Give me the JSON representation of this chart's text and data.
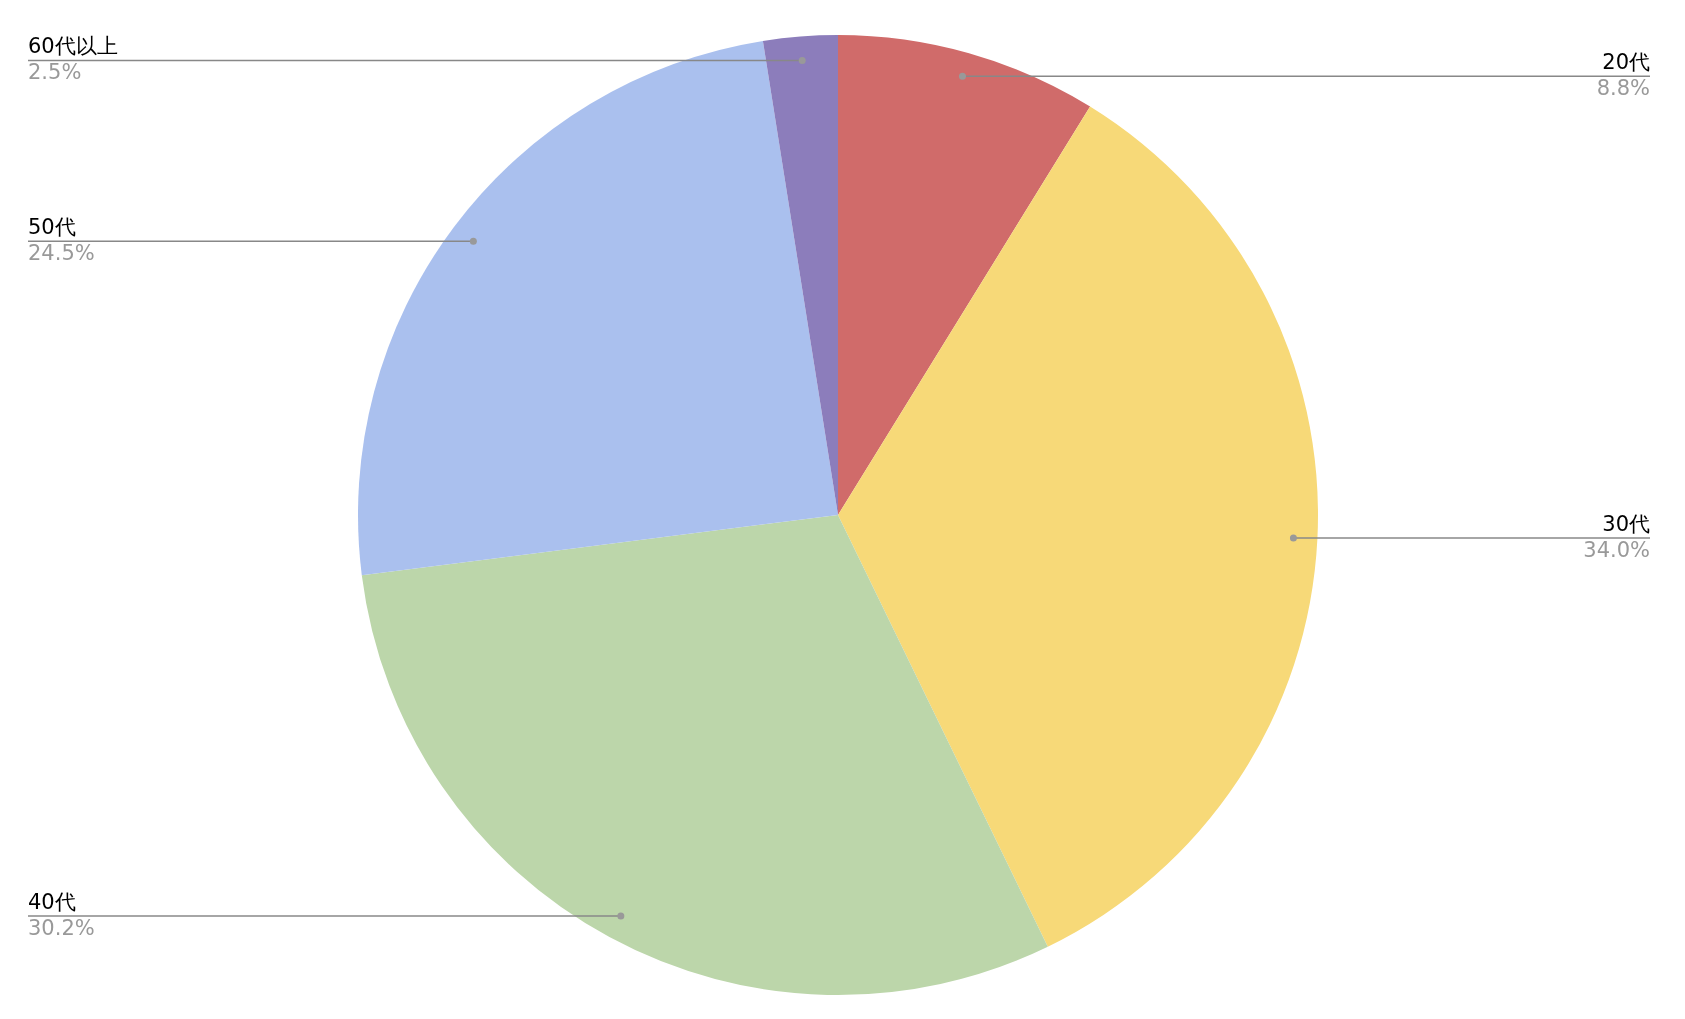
{
  "chart_data": {
    "type": "pie",
    "categories": [
      "20代",
      "30代",
      "40代",
      "50代",
      "60代以上"
    ],
    "values": [
      8.8,
      34.0,
      30.2,
      24.5,
      2.5
    ],
    "value_labels": [
      "8.8%",
      "34.0%",
      "30.2%",
      "24.5%",
      "2.5%"
    ],
    "colors": [
      "#d06b6a",
      "#f7d978",
      "#bcd6aa",
      "#aac0ee",
      "#8c7dbb"
    ],
    "legend": false
  }
}
